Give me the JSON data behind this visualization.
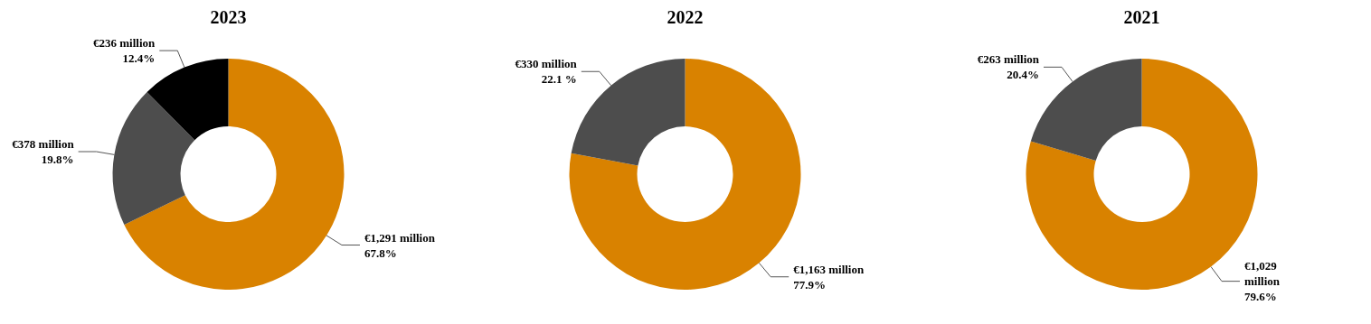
{
  "chart_data": [
    {
      "type": "donut",
      "title": "2023",
      "categories": [
        null,
        null,
        null
      ],
      "values": [
        67.8,
        19.8,
        12.4
      ],
      "colors": [
        "#d98200",
        "#4d4d4d",
        "#000000"
      ],
      "value_labels": [
        "€1,291 million\n67.8%",
        "€378 million\n19.8%",
        "€236 million\n12.4%"
      ]
    },
    {
      "type": "donut",
      "title": "2022",
      "categories": [
        null,
        null
      ],
      "values": [
        77.9,
        22.1
      ],
      "colors": [
        "#d98200",
        "#4d4d4d"
      ],
      "value_labels": [
        "€1,163 million\n77.9%",
        "€330 million\n22.1 %"
      ]
    },
    {
      "type": "donut",
      "title": "2021",
      "categories": [
        null,
        null
      ],
      "values": [
        79.6,
        20.4
      ],
      "colors": [
        "#d98200",
        "#4d4d4d"
      ],
      "value_labels": [
        "€1,029\nmillion\n79.6%",
        "€263 million\n20.4%"
      ]
    }
  ]
}
